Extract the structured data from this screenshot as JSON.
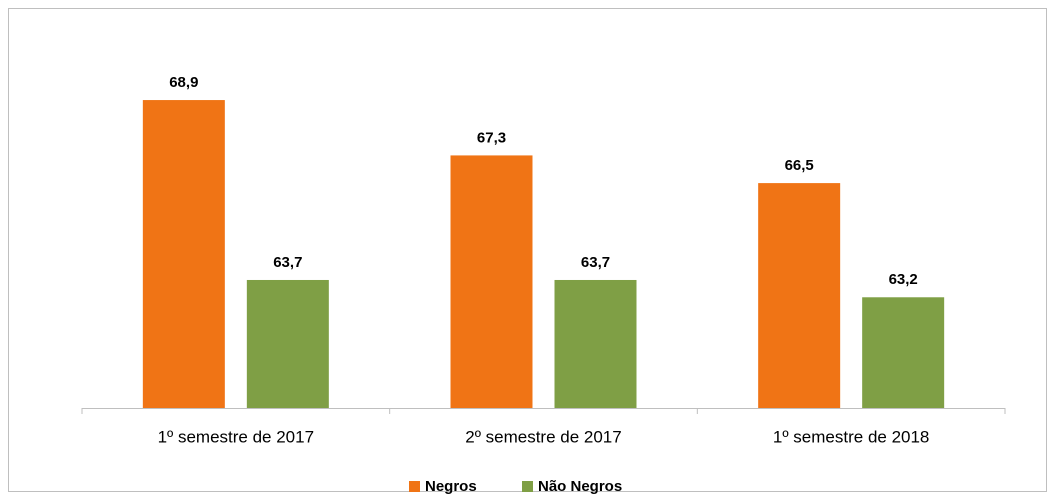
{
  "chart_data": {
    "type": "bar",
    "categories": [
      "1º semestre de 2017",
      "2º semestre de 2017",
      "1º semestre de 2018"
    ],
    "series": [
      {
        "name": "Negros",
        "color": "#f07415",
        "values": [
          68.9,
          67.3,
          66.5
        ],
        "value_labels": [
          "68,9",
          "67,3",
          "66,5"
        ]
      },
      {
        "name": "Não Negros",
        "color": "#7f9f45",
        "values": [
          63.7,
          63.7,
          63.2
        ],
        "value_labels": [
          "63,7",
          "63,7",
          "63,2"
        ]
      }
    ],
    "ylim": [
      60,
      70
    ],
    "legend": "bottom"
  }
}
